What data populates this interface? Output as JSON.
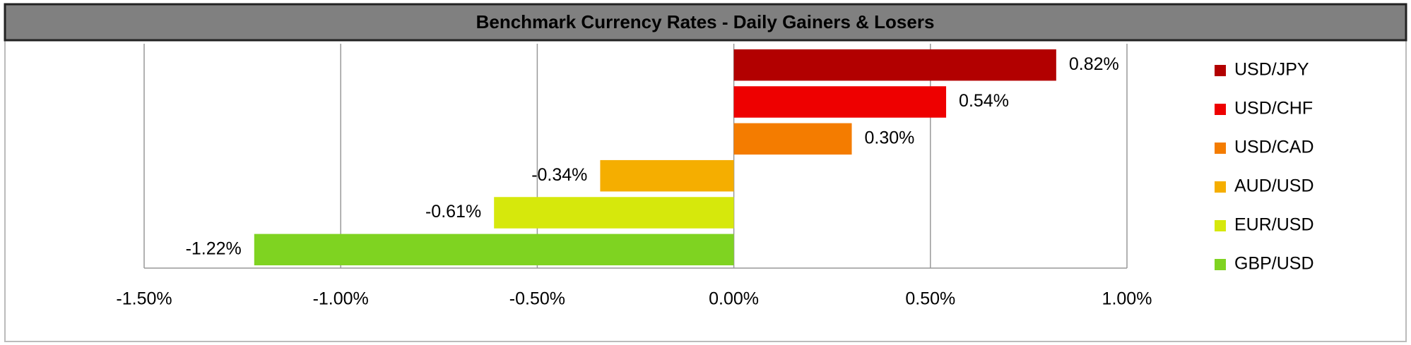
{
  "chart_data": {
    "type": "bar",
    "orientation": "horizontal",
    "title": "Benchmark Currency Rates - Daily Gainers & Losers",
    "categories": [
      "USD/JPY",
      "USD/CHF",
      "USD/CAD",
      "AUD/USD",
      "EUR/USD",
      "GBP/USD"
    ],
    "values": [
      0.82,
      0.54,
      0.3,
      -0.34,
      -0.61,
      -1.22
    ],
    "value_labels": [
      "0.82%",
      "0.54%",
      "0.30%",
      "-0.34%",
      "-0.61%",
      "-1.22%"
    ],
    "colors": [
      "#b20000",
      "#ee0000",
      "#f47c00",
      "#f5ae00",
      "#d6e80c",
      "#7fd321"
    ],
    "xlim": [
      -1.5,
      1.0
    ],
    "xticks": [
      {
        "value": -1.5,
        "label": "-1.50%"
      },
      {
        "value": -1.0,
        "label": "-1.00%"
      },
      {
        "value": -0.5,
        "label": "-0.50%"
      },
      {
        "value": 0,
        "label": "0.00%"
      },
      {
        "value": 0.5,
        "label": "0.50%"
      },
      {
        "value": 1.0,
        "label": "1.00%"
      }
    ],
    "grid": true,
    "legend": "right"
  }
}
